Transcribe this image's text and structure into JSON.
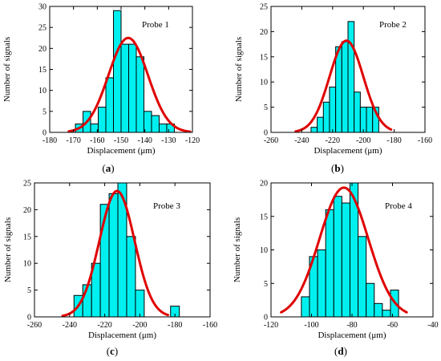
{
  "chart_data": [
    {
      "id": "a",
      "type": "bar",
      "caption_prefix": "(",
      "caption_letter": "a",
      "caption_suffix": ")",
      "annotation": "Probe 1",
      "xlabel": "Displacement (μm)",
      "ylabel": "Number of signals",
      "xlim": [
        -180,
        -120
      ],
      "ylim": [
        0,
        30
      ],
      "xticks": [
        -180,
        -170,
        -160,
        -150,
        -140,
        -130,
        -120
      ],
      "yticks": [
        0,
        5,
        10,
        15,
        20,
        25,
        30
      ],
      "bin_width": 3.2,
      "bins": [
        {
          "center": -167.6,
          "count": 2
        },
        {
          "center": -164.4,
          "count": 5
        },
        {
          "center": -161.2,
          "count": 2
        },
        {
          "center": -158.0,
          "count": 6
        },
        {
          "center": -154.8,
          "count": 13
        },
        {
          "center": -151.6,
          "count": 29
        },
        {
          "center": -148.4,
          "count": 21
        },
        {
          "center": -145.2,
          "count": 21
        },
        {
          "center": -142.0,
          "count": 18
        },
        {
          "center": -138.8,
          "count": 5
        },
        {
          "center": -135.6,
          "count": 4
        },
        {
          "center": -132.4,
          "count": 2
        },
        {
          "center": -129.2,
          "count": 2
        }
      ],
      "fit": {
        "mean": -147,
        "peak": 22.5,
        "sigma": 8.3,
        "range": [
          -172,
          -121
        ]
      },
      "bar_color": "#00f0f0",
      "fit_color": "#e00000"
    },
    {
      "id": "b",
      "type": "bar",
      "caption_prefix": "(",
      "caption_letter": "b",
      "caption_suffix": ")",
      "annotation": "Probe 2",
      "xlabel": "Displacement (μm)",
      "ylabel": "Number of signals",
      "xlim": [
        -260,
        -160
      ],
      "ylim": [
        0,
        25
      ],
      "xticks": [
        -260,
        -240,
        -220,
        -200,
        -180,
        -160
      ],
      "yticks": [
        0,
        5,
        10,
        15,
        20,
        25
      ],
      "bin_width": 4,
      "bins": [
        {
          "center": -232,
          "count": 1
        },
        {
          "center": -228,
          "count": 3
        },
        {
          "center": -224,
          "count": 6
        },
        {
          "center": -220,
          "count": 9
        },
        {
          "center": -216,
          "count": 17
        },
        {
          "center": -212,
          "count": 18
        },
        {
          "center": -208,
          "count": 22
        },
        {
          "center": -204,
          "count": 8
        },
        {
          "center": -200,
          "count": 5
        },
        {
          "center": -196,
          "count": 5
        },
        {
          "center": -192,
          "count": 5
        }
      ],
      "fit": {
        "mean": -211,
        "peak": 18.2,
        "sigma": 11,
        "range": [
          -244,
          -182
        ]
      },
      "bar_color": "#00f0f0",
      "fit_color": "#e00000"
    },
    {
      "id": "c",
      "type": "bar",
      "caption_prefix": "(",
      "caption_letter": "c",
      "caption_suffix": ")",
      "annotation": "Probe 3",
      "xlabel": "Displacement (μm)",
      "ylabel": "Number of signals",
      "xlim": [
        -260,
        -160
      ],
      "ylim": [
        0,
        25
      ],
      "xticks": [
        -260,
        -240,
        -220,
        -200,
        -180,
        -160
      ],
      "yticks": [
        0,
        5,
        10,
        15,
        20,
        25
      ],
      "bin_width": 5,
      "bins": [
        {
          "center": -235,
          "count": 4
        },
        {
          "center": -230,
          "count": 6
        },
        {
          "center": -225,
          "count": 10
        },
        {
          "center": -220,
          "count": 21
        },
        {
          "center": -215,
          "count": 23
        },
        {
          "center": -210,
          "count": 25
        },
        {
          "center": -205,
          "count": 15
        },
        {
          "center": -200,
          "count": 5
        },
        {
          "center": -195,
          "count": 0
        },
        {
          "center": -190,
          "count": 0
        },
        {
          "center": -185,
          "count": 0
        },
        {
          "center": -180,
          "count": 2
        }
      ],
      "fit": {
        "mean": -213,
        "peak": 23.5,
        "sigma": 10,
        "range": [
          -244,
          -184
        ]
      },
      "bar_color": "#00f0f0",
      "fit_color": "#e00000"
    },
    {
      "id": "d",
      "type": "bar",
      "caption_prefix": "(",
      "caption_letter": "d",
      "caption_suffix": ")",
      "annotation": "Probe 4",
      "xlabel": "Displacement (μm)",
      "ylabel": "Number of signals",
      "xlim": [
        -120,
        -40
      ],
      "ylim": [
        0,
        20
      ],
      "xticks": [
        -120,
        -100,
        -80,
        -60,
        -40
      ],
      "yticks": [
        0,
        5,
        10,
        15,
        20
      ],
      "bin_width": 4,
      "bins": [
        {
          "center": -103,
          "count": 3
        },
        {
          "center": -99,
          "count": 9
        },
        {
          "center": -95,
          "count": 10
        },
        {
          "center": -91,
          "count": 16
        },
        {
          "center": -87,
          "count": 18
        },
        {
          "center": -83,
          "count": 17
        },
        {
          "center": -79,
          "count": 20
        },
        {
          "center": -75,
          "count": 12
        },
        {
          "center": -71,
          "count": 5
        },
        {
          "center": -67,
          "count": 2
        },
        {
          "center": -63,
          "count": 1
        },
        {
          "center": -59,
          "count": 4
        }
      ],
      "fit": {
        "mean": -84,
        "peak": 19.3,
        "sigma": 12,
        "range": [
          -115,
          -53
        ]
      },
      "bar_color": "#00f0f0",
      "fit_color": "#e00000"
    }
  ]
}
